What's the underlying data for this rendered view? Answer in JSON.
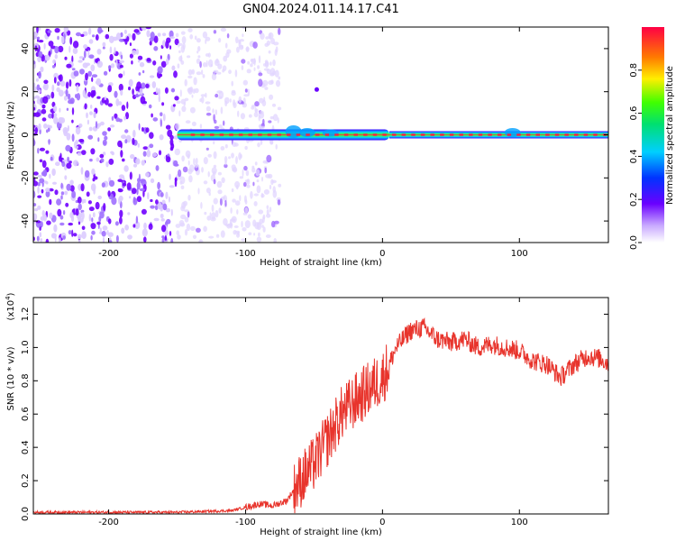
{
  "title": "GN04.2024.011.14.17.C41",
  "chart_data": [
    {
      "type": "heatmap",
      "xlabel": "Height of straight line (km)",
      "ylabel": "Frequency (Hz)",
      "xlim": [
        -255,
        165
      ],
      "ylim": [
        -50,
        50
      ],
      "xticks": [
        -200,
        -100,
        0,
        100
      ],
      "yticks": [
        -40,
        -20,
        0,
        20,
        40
      ],
      "colorbar": {
        "label": "Normalized spectral amplitude",
        "range": [
          0,
          1
        ],
        "ticks": [
          "0.0",
          "0.2",
          "0.4",
          "0.6",
          "0.8"
        ]
      },
      "colors": {
        "low": "#c9b0ff",
        "mid": "#7a00ff",
        "band_edge": "#0033ff",
        "band_core": "#ff1a44"
      },
      "features": [
        {
          "name": "noise speckle",
          "x_range": [
            -255,
            -95
          ],
          "freq_range": [
            -50,
            50
          ],
          "amplitude": 0.15
        },
        {
          "name": "signal band",
          "x_range": [
            -150,
            165
          ],
          "freq_center": 0,
          "amplitude": 0.9
        },
        {
          "name": "isolated spot",
          "x": -48,
          "freq": 21,
          "amplitude": 0.12
        }
      ]
    },
    {
      "type": "line",
      "xlabel": "Height of straight line (km)",
      "ylabel": "SNR (10 * v/v)",
      "scale_label": "(x10",
      "scale_exp": "4",
      "scale_close": ")",
      "xlim": [
        -255,
        165
      ],
      "ylim": [
        0,
        1.3
      ],
      "xticks": [
        -200,
        -100,
        0,
        100
      ],
      "yticks": [
        "0.0",
        "0.2",
        "0.4",
        "0.6",
        "0.8",
        "1.0",
        "1.2"
      ],
      "series_color": "#e8342c",
      "series": [
        {
          "x": [
            -255,
            -200,
            -150,
            -110,
            -100,
            -90,
            -80,
            -70,
            -60,
            -50,
            -40,
            -30,
            -20,
            -10,
            0,
            5,
            10,
            20,
            30,
            40,
            50,
            60,
            70,
            80,
            90,
            100,
            110,
            120,
            130,
            140,
            150,
            160,
            165
          ],
          "values": [
            0.01,
            0.01,
            0.01,
            0.02,
            0.04,
            0.06,
            0.05,
            0.08,
            0.2,
            0.3,
            0.45,
            0.6,
            0.68,
            0.75,
            0.82,
            0.9,
            1.0,
            1.1,
            1.12,
            1.05,
            1.03,
            1.05,
            1.0,
            1.02,
            1.0,
            0.98,
            0.92,
            0.9,
            0.82,
            0.9,
            0.95,
            0.93,
            0.9
          ]
        }
      ]
    }
  ]
}
